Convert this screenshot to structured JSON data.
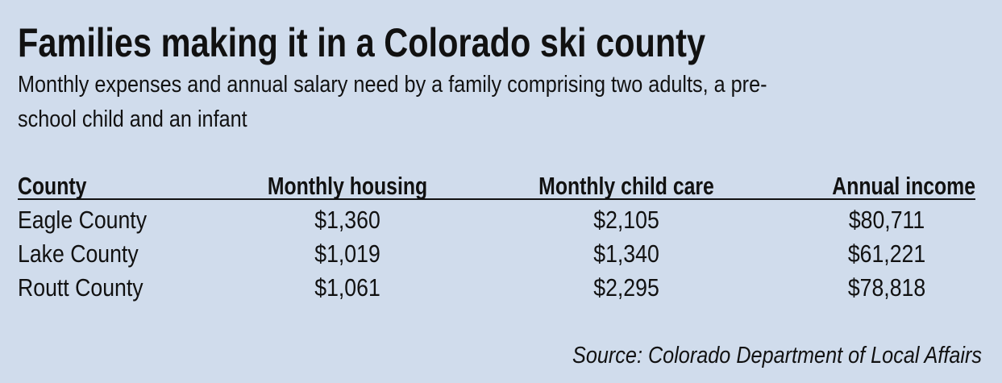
{
  "header": {
    "title": "Families making it in a Colorado ski county",
    "subtitle_lines": [
      "Monthly expenses and annual salary need by a family comprising two adults, a pre-",
      "school child and an infant"
    ]
  },
  "table": {
    "columns": [
      "County",
      "Monthly housing",
      "Monthly child care",
      "Annual income"
    ],
    "rows": [
      [
        "Eagle County",
        "$1,360",
        "$2,105",
        "$80,711"
      ],
      [
        "Lake County",
        "$1,019",
        "$1,340",
        "$61,221"
      ],
      [
        "Routt County",
        "$1,061",
        "$2,295",
        "$78,818"
      ]
    ]
  },
  "source": "Source: Colorado Department of Local Affairs"
}
